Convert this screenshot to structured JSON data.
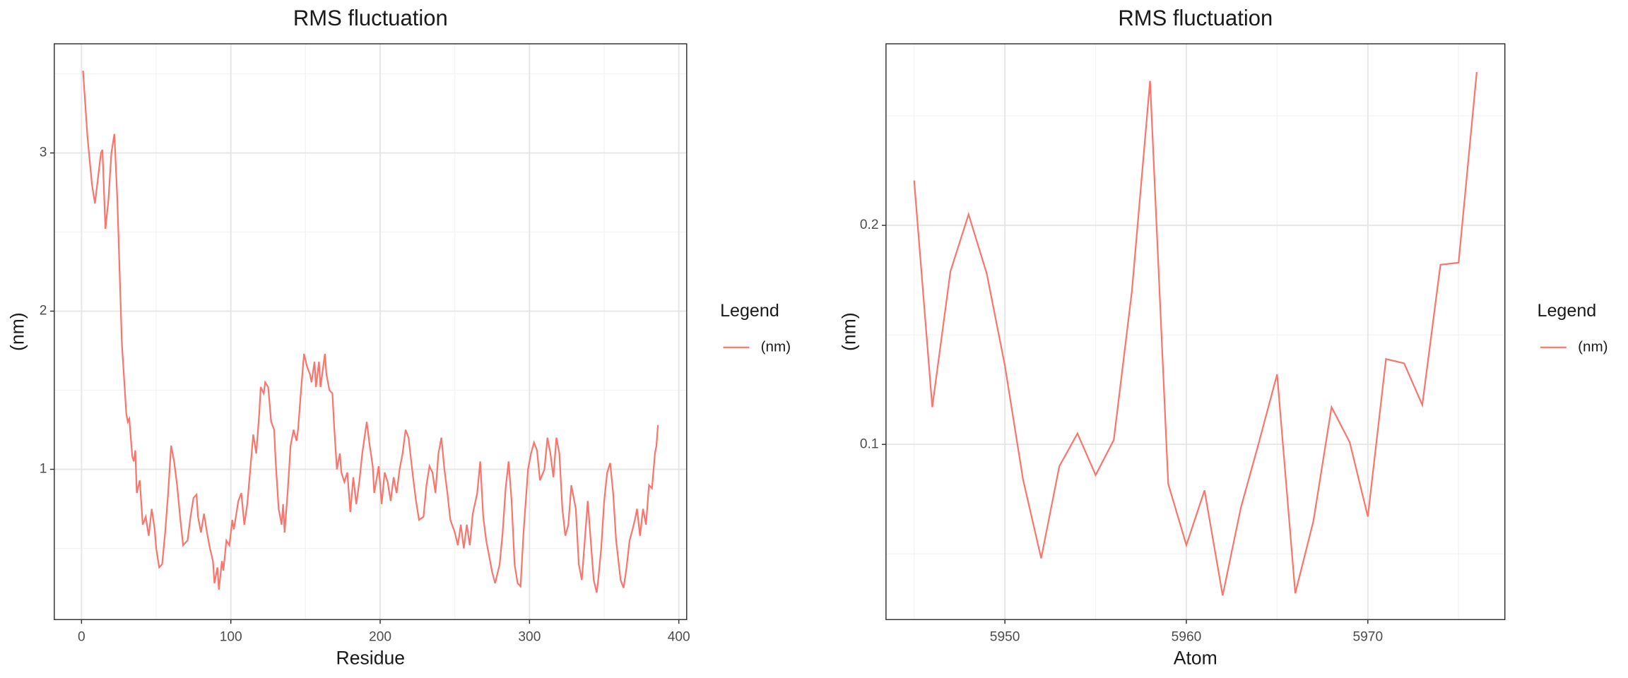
{
  "chart_data": [
    {
      "type": "line",
      "title": "RMS fluctuation",
      "xlabel": "Residue",
      "ylabel": "(nm)",
      "legend_title": "Legend",
      "legend": "right",
      "grid": true,
      "x": [
        1,
        4,
        7,
        9,
        13,
        14,
        16,
        18,
        20,
        22,
        24,
        27,
        30,
        31,
        32,
        34,
        35,
        36,
        37,
        39,
        41,
        43,
        45,
        47,
        49,
        50,
        52,
        54,
        56,
        58,
        60,
        62,
        64,
        66,
        68,
        71,
        73,
        75,
        77,
        78,
        80,
        82,
        84,
        86,
        88,
        89,
        91,
        92,
        94,
        95,
        97,
        99,
        101,
        102,
        105,
        107,
        109,
        111,
        113,
        115,
        117,
        119,
        120,
        122,
        123,
        125,
        127,
        129,
        130,
        132,
        134,
        135,
        136,
        138,
        140,
        142,
        144,
        145,
        147,
        149,
        151,
        153,
        154,
        156,
        157,
        159,
        160,
        163,
        164,
        166,
        168,
        169,
        171,
        173,
        174,
        176,
        178,
        180,
        182,
        184,
        186,
        188,
        191,
        193,
        195,
        196,
        199,
        201,
        203,
        205,
        207,
        209,
        211,
        213,
        215,
        217,
        219,
        222,
        224,
        226,
        229,
        231,
        233,
        235,
        237,
        239,
        241,
        243,
        245,
        247,
        250,
        252,
        254,
        256,
        258,
        260,
        262,
        265,
        267,
        269,
        271,
        273,
        275,
        277,
        280,
        282,
        284,
        286,
        288,
        290,
        292,
        294,
        296,
        299,
        301,
        303,
        305,
        307,
        310,
        312,
        314,
        316,
        318,
        320,
        322,
        324,
        326,
        328,
        331,
        333,
        335,
        337,
        339,
        341,
        343,
        345,
        346,
        348,
        350,
        352,
        354,
        356,
        358,
        361,
        363,
        365,
        367,
        369,
        371,
        372,
        374,
        376,
        378,
        380,
        382,
        384,
        385,
        386
      ],
      "series": [
        {
          "name": "(nm)",
          "color": "#F8766D",
          "values": [
            3.52,
            3.1,
            2.8,
            2.68,
            3.0,
            3.02,
            2.52,
            2.7,
            3.0,
            3.12,
            2.7,
            1.8,
            1.35,
            1.3,
            1.32,
            1.08,
            1.05,
            1.12,
            0.85,
            0.93,
            0.65,
            0.7,
            0.58,
            0.75,
            0.62,
            0.5,
            0.38,
            0.4,
            0.6,
            0.85,
            1.15,
            1.05,
            0.9,
            0.7,
            0.52,
            0.55,
            0.7,
            0.82,
            0.84,
            0.7,
            0.6,
            0.72,
            0.6,
            0.5,
            0.42,
            0.28,
            0.38,
            0.24,
            0.42,
            0.36,
            0.55,
            0.52,
            0.68,
            0.62,
            0.8,
            0.85,
            0.65,
            0.78,
            1.0,
            1.22,
            1.1,
            1.35,
            1.52,
            1.48,
            1.55,
            1.52,
            1.3,
            1.25,
            1.05,
            0.75,
            0.65,
            0.78,
            0.6,
            0.85,
            1.15,
            1.25,
            1.18,
            1.25,
            1.5,
            1.73,
            1.65,
            1.6,
            1.55,
            1.68,
            1.52,
            1.68,
            1.52,
            1.73,
            1.6,
            1.5,
            1.48,
            1.3,
            1.0,
            1.1,
            0.98,
            0.92,
            0.98,
            0.73,
            0.95,
            0.78,
            0.92,
            1.1,
            1.3,
            1.15,
            1.02,
            0.85,
            1.02,
            0.78,
            0.98,
            0.92,
            0.8,
            0.95,
            0.85,
            1.0,
            1.1,
            1.25,
            1.2,
            0.95,
            0.8,
            0.68,
            0.7,
            0.9,
            1.02,
            0.98,
            0.85,
            1.1,
            1.2,
            1.0,
            0.85,
            0.68,
            0.6,
            0.52,
            0.65,
            0.5,
            0.65,
            0.52,
            0.72,
            0.85,
            1.05,
            0.7,
            0.55,
            0.45,
            0.35,
            0.28,
            0.4,
            0.6,
            0.88,
            1.05,
            0.8,
            0.4,
            0.28,
            0.26,
            0.6,
            1.0,
            1.1,
            1.17,
            1.12,
            0.93,
            1.0,
            1.2,
            1.1,
            0.95,
            1.2,
            1.1,
            0.75,
            0.58,
            0.65,
            0.9,
            0.75,
            0.4,
            0.3,
            0.55,
            0.8,
            0.55,
            0.3,
            0.22,
            0.3,
            0.5,
            0.8,
            0.98,
            1.04,
            0.85,
            0.55,
            0.3,
            0.25,
            0.38,
            0.55,
            0.62,
            0.7,
            0.75,
            0.58,
            0.75,
            0.65,
            0.9,
            0.88,
            1.1,
            1.15,
            1.28
          ]
        }
      ],
      "xlim": [
        -18.25,
        405.25
      ],
      "ylim": [
        0.05,
        3.69
      ],
      "xticks": [
        0,
        100,
        200,
        300,
        400
      ],
      "yticks": [
        1,
        2,
        3
      ],
      "x_minor_ticks": [
        50,
        150,
        250,
        350
      ],
      "y_minor_ticks": [
        0.5,
        1.5,
        2.5,
        3.5
      ]
    },
    {
      "type": "line",
      "title": "RMS fluctuation",
      "xlabel": "Atom",
      "ylabel": "(nm)",
      "legend_title": "Legend",
      "legend": "right",
      "grid": true,
      "x": [
        5945,
        5946,
        5947,
        5948,
        5949,
        5950,
        5951,
        5952,
        5953,
        5954,
        5955,
        5956,
        5957,
        5958,
        5959,
        5960,
        5961,
        5962,
        5963,
        5964,
        5965,
        5966,
        5967,
        5968,
        5969,
        5970,
        5971,
        5972,
        5973,
        5974,
        5975,
        5976
      ],
      "series": [
        {
          "name": "(nm)",
          "color": "#F8766D",
          "values": [
            0.2205,
            0.117,
            0.179,
            0.205,
            0.178,
            0.136,
            0.084,
            0.048,
            0.09,
            0.105,
            0.086,
            0.102,
            0.17,
            0.266,
            0.082,
            0.054,
            0.079,
            0.031,
            0.071,
            0.101,
            0.132,
            0.032,
            0.065,
            0.117,
            0.101,
            0.067,
            0.139,
            0.137,
            0.118,
            0.182,
            0.183,
            0.27
          ]
        }
      ],
      "xlim": [
        5943.45,
        5977.55
      ],
      "ylim": [
        0.02,
        0.2829
      ],
      "xticks": [
        5950,
        5960,
        5970
      ],
      "yticks": [
        0.1,
        0.2
      ],
      "x_minor_ticks": [
        5945,
        5955,
        5965,
        5975
      ],
      "y_minor_ticks": [
        0.05,
        0.15,
        0.25
      ]
    }
  ]
}
